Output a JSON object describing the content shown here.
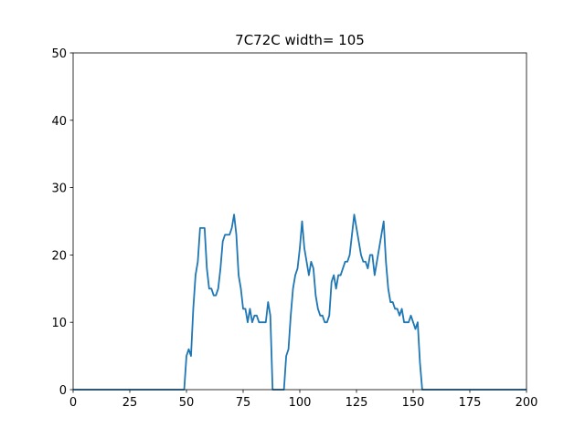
{
  "chart_data": {
    "type": "line",
    "title": "7C72C width= 105",
    "x": [
      0,
      1,
      2,
      3,
      4,
      5,
      6,
      7,
      8,
      9,
      10,
      11,
      12,
      13,
      14,
      15,
      16,
      17,
      18,
      19,
      20,
      21,
      22,
      23,
      24,
      25,
      26,
      27,
      28,
      29,
      30,
      31,
      32,
      33,
      34,
      35,
      36,
      37,
      38,
      39,
      40,
      41,
      42,
      43,
      44,
      45,
      46,
      47,
      48,
      49,
      50,
      51,
      52,
      53,
      54,
      55,
      56,
      57,
      58,
      59,
      60,
      61,
      62,
      63,
      64,
      65,
      66,
      67,
      68,
      69,
      70,
      71,
      72,
      73,
      74,
      75,
      76,
      77,
      78,
      79,
      80,
      81,
      82,
      83,
      84,
      85,
      86,
      87,
      88,
      89,
      90,
      91,
      92,
      93,
      94,
      95,
      96,
      97,
      98,
      99,
      100,
      101,
      102,
      103,
      104,
      105,
      106,
      107,
      108,
      109,
      110,
      111,
      112,
      113,
      114,
      115,
      116,
      117,
      118,
      119,
      120,
      121,
      122,
      123,
      124,
      125,
      126,
      127,
      128,
      129,
      130,
      131,
      132,
      133,
      134,
      135,
      136,
      137,
      138,
      139,
      140,
      141,
      142,
      143,
      144,
      145,
      146,
      147,
      148,
      149,
      150,
      151,
      152,
      153,
      154,
      155,
      156,
      157,
      158,
      159,
      160,
      161,
      162,
      163,
      164,
      165,
      166,
      167,
      168,
      169,
      170,
      171,
      172,
      173,
      174,
      175,
      176,
      177,
      178,
      179,
      180,
      181,
      182,
      183,
      184,
      185,
      186,
      187,
      188,
      189,
      190,
      191,
      192,
      193,
      194,
      195,
      196,
      197,
      198,
      199,
      200
    ],
    "series": [
      {
        "color": "#1f77b4",
        "values": [
          0,
          0,
          0,
          0,
          0,
          0,
          0,
          0,
          0,
          0,
          0,
          0,
          0,
          0,
          0,
          0,
          0,
          0,
          0,
          0,
          0,
          0,
          0,
          0,
          0,
          0,
          0,
          0,
          0,
          0,
          0,
          0,
          0,
          0,
          0,
          0,
          0,
          0,
          0,
          0,
          0,
          0,
          0,
          0,
          0,
          0,
          0,
          0,
          0,
          0,
          5,
          6,
          5,
          12,
          17,
          19,
          24,
          24,
          24,
          18,
          15,
          15,
          14,
          14,
          15,
          18,
          22,
          23,
          23,
          23,
          24,
          26,
          23,
          17,
          15,
          12,
          12,
          10,
          12,
          10,
          11,
          11,
          10,
          10,
          10,
          10,
          13,
          11,
          0,
          0,
          0,
          0,
          0,
          0,
          5,
          6,
          11,
          15,
          17,
          18,
          21,
          25,
          21,
          19,
          17,
          19,
          18,
          14,
          12,
          11,
          11,
          10,
          10,
          11,
          16,
          17,
          15,
          17,
          17,
          18,
          19,
          19,
          20,
          23,
          26,
          24,
          22,
          20,
          19,
          19,
          18,
          20,
          20,
          17,
          19,
          21,
          23,
          25,
          19,
          15,
          13,
          13,
          12,
          12,
          11,
          12,
          10,
          10,
          10,
          11,
          10,
          9,
          10,
          4,
          0,
          0,
          0,
          0,
          0,
          0,
          0,
          0,
          0,
          0,
          0,
          0,
          0,
          0,
          0,
          0,
          0,
          0,
          0,
          0,
          0,
          0,
          0,
          0,
          0,
          0,
          0,
          0,
          0,
          0,
          0,
          0,
          0,
          0,
          0,
          0,
          0,
          0,
          0,
          0,
          0,
          0,
          0,
          0,
          0,
          0,
          0
        ]
      }
    ],
    "xlim": [
      0,
      200
    ],
    "xticks": [
      0,
      25,
      50,
      75,
      100,
      125,
      150,
      175,
      200
    ],
    "ylim": [
      0,
      50
    ],
    "yticks": [
      0,
      10,
      20,
      30,
      40,
      50
    ]
  }
}
